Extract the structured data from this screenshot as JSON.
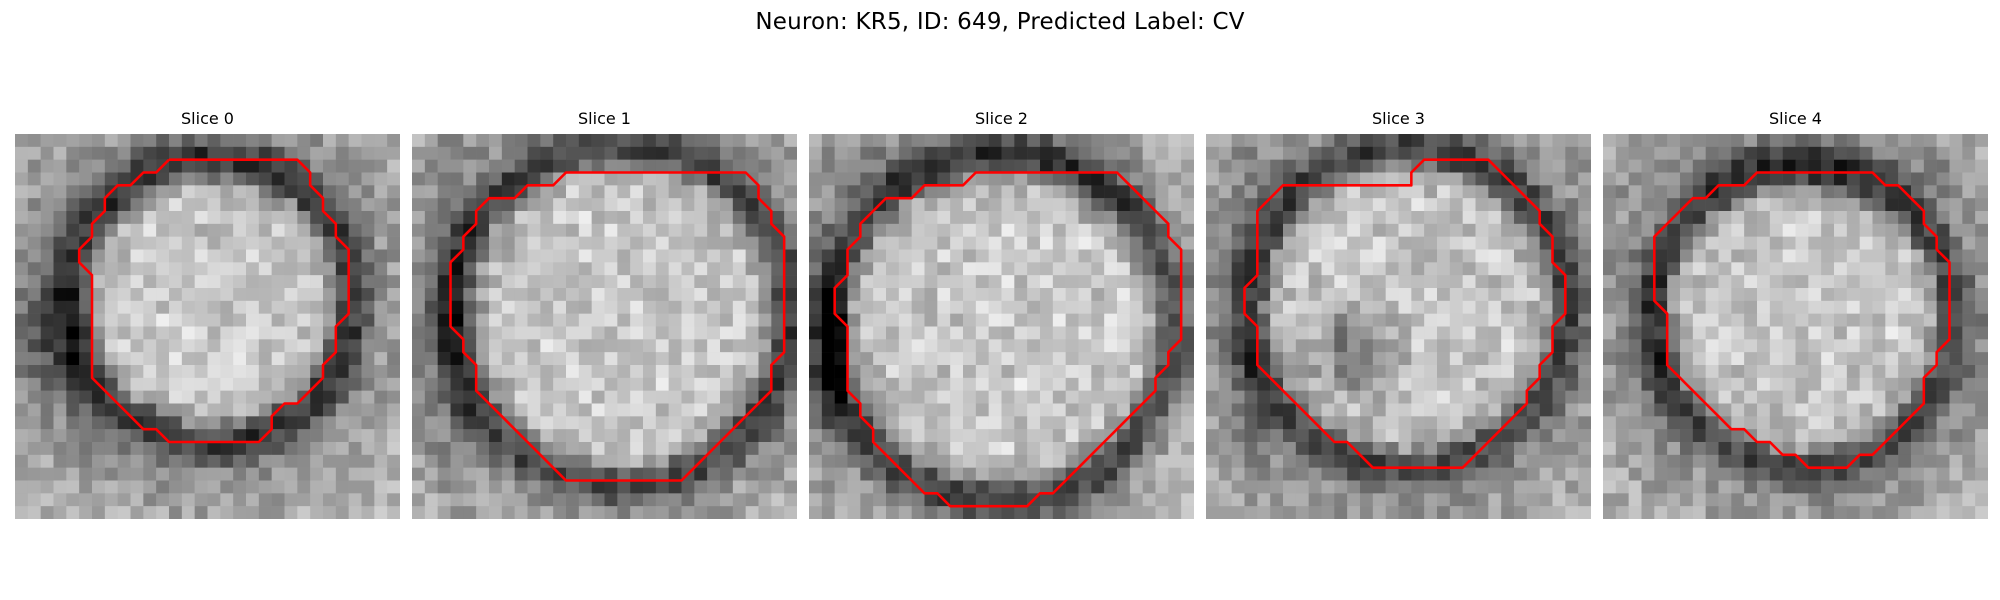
{
  "figure": {
    "title": "Neuron: KR5, ID: 649, Predicted Label: CV"
  },
  "slices": [
    {
      "title": "Slice 0",
      "contour": [
        [
          12,
          2
        ],
        [
          22,
          2
        ],
        [
          23,
          3
        ],
        [
          23,
          4
        ],
        [
          24,
          5
        ],
        [
          24,
          6
        ],
        [
          25,
          7
        ],
        [
          25,
          8
        ],
        [
          26,
          9
        ],
        [
          26,
          10
        ],
        [
          26,
          11
        ],
        [
          26,
          12
        ],
        [
          26,
          13
        ],
        [
          26,
          14
        ],
        [
          25,
          15
        ],
        [
          25,
          16
        ],
        [
          25,
          17
        ],
        [
          24,
          18
        ],
        [
          24,
          19
        ],
        [
          23,
          20
        ],
        [
          22,
          21
        ],
        [
          21,
          21
        ],
        [
          20,
          22
        ],
        [
          20,
          23
        ],
        [
          19,
          24
        ],
        [
          12,
          24
        ],
        [
          11,
          23
        ],
        [
          10,
          23
        ],
        [
          9,
          22
        ],
        [
          8,
          21
        ],
        [
          7,
          20
        ],
        [
          6,
          19
        ],
        [
          6,
          18
        ],
        [
          6,
          17
        ],
        [
          6,
          16
        ],
        [
          6,
          15
        ],
        [
          6,
          14
        ],
        [
          6,
          13
        ],
        [
          6,
          12
        ],
        [
          6,
          11
        ],
        [
          5,
          10
        ],
        [
          5,
          9
        ],
        [
          6,
          8
        ],
        [
          6,
          7
        ],
        [
          7,
          6
        ],
        [
          7,
          5
        ],
        [
          8,
          4
        ],
        [
          9,
          4
        ],
        [
          10,
          3
        ],
        [
          11,
          3
        ]
      ],
      "tone": [
        1,
        0.42,
        0.6,
        -0.1,
        0.15,
        0.9
      ]
    },
    {
      "title": "Slice 1",
      "contour": [
        [
          17,
          3
        ],
        [
          26,
          3
        ],
        [
          27,
          4
        ],
        [
          27,
          5
        ],
        [
          28,
          6
        ],
        [
          28,
          7
        ],
        [
          29,
          8
        ],
        [
          29,
          9
        ],
        [
          29,
          10
        ],
        [
          29,
          11
        ],
        [
          29,
          12
        ],
        [
          29,
          13
        ],
        [
          29,
          14
        ],
        [
          29,
          15
        ],
        [
          29,
          16
        ],
        [
          29,
          17
        ],
        [
          28,
          18
        ],
        [
          28,
          19
        ],
        [
          28,
          20
        ],
        [
          27,
          21
        ],
        [
          26,
          22
        ],
        [
          25,
          23
        ],
        [
          24,
          24
        ],
        [
          23,
          25
        ],
        [
          22,
          26
        ],
        [
          21,
          27
        ],
        [
          12,
          27
        ],
        [
          11,
          26
        ],
        [
          10,
          25
        ],
        [
          9,
          24
        ],
        [
          8,
          23
        ],
        [
          7,
          22
        ],
        [
          6,
          21
        ],
        [
          5,
          20
        ],
        [
          5,
          19
        ],
        [
          5,
          18
        ],
        [
          4,
          17
        ],
        [
          4,
          16
        ],
        [
          3,
          15
        ],
        [
          3,
          14
        ],
        [
          3,
          13
        ],
        [
          3,
          12
        ],
        [
          3,
          11
        ],
        [
          3,
          10
        ],
        [
          4,
          9
        ],
        [
          4,
          8
        ],
        [
          5,
          7
        ],
        [
          5,
          6
        ],
        [
          6,
          5
        ],
        [
          8,
          5
        ],
        [
          9,
          4
        ],
        [
          11,
          4
        ],
        [
          12,
          3
        ],
        [
          16,
          3
        ]
      ],
      "tone": [
        2,
        0.48,
        0.5,
        0.35,
        -0.2,
        0.65
      ]
    },
    {
      "title": "Slice 2",
      "contour": [
        [
          16,
          3
        ],
        [
          24,
          3
        ],
        [
          25,
          4
        ],
        [
          26,
          5
        ],
        [
          27,
          6
        ],
        [
          28,
          7
        ],
        [
          28,
          8
        ],
        [
          29,
          9
        ],
        [
          29,
          10
        ],
        [
          29,
          11
        ],
        [
          29,
          12
        ],
        [
          29,
          13
        ],
        [
          29,
          14
        ],
        [
          29,
          15
        ],
        [
          29,
          16
        ],
        [
          28,
          17
        ],
        [
          28,
          18
        ],
        [
          27,
          19
        ],
        [
          27,
          20
        ],
        [
          26,
          21
        ],
        [
          25,
          22
        ],
        [
          24,
          23
        ],
        [
          23,
          24
        ],
        [
          22,
          25
        ],
        [
          21,
          26
        ],
        [
          20,
          27
        ],
        [
          19,
          28
        ],
        [
          18,
          28
        ],
        [
          17,
          29
        ],
        [
          11,
          29
        ],
        [
          10,
          28
        ],
        [
          9,
          28
        ],
        [
          8,
          27
        ],
        [
          7,
          26
        ],
        [
          6,
          25
        ],
        [
          5,
          24
        ],
        [
          5,
          23
        ],
        [
          4,
          22
        ],
        [
          4,
          21
        ],
        [
          3,
          20
        ],
        [
          3,
          19
        ],
        [
          3,
          18
        ],
        [
          3,
          17
        ],
        [
          3,
          16
        ],
        [
          3,
          15
        ],
        [
          2,
          14
        ],
        [
          2,
          13
        ],
        [
          2,
          12
        ],
        [
          3,
          11
        ],
        [
          3,
          10
        ],
        [
          3,
          9
        ],
        [
          4,
          8
        ],
        [
          4,
          7
        ],
        [
          5,
          6
        ],
        [
          6,
          5
        ],
        [
          7,
          5
        ],
        [
          8,
          5
        ],
        [
          9,
          4
        ],
        [
          10,
          4
        ],
        [
          11,
          4
        ],
        [
          12,
          4
        ],
        [
          13,
          3
        ],
        [
          15,
          3
        ]
      ],
      "tone": [
        3,
        0.5,
        0.5,
        -0.4,
        0.35,
        0.75
      ]
    },
    {
      "title": "Slice 3",
      "contour": [
        [
          18,
          2
        ],
        [
          22,
          2
        ],
        [
          23,
          3
        ],
        [
          24,
          4
        ],
        [
          25,
          5
        ],
        [
          26,
          6
        ],
        [
          26,
          7
        ],
        [
          27,
          8
        ],
        [
          27,
          9
        ],
        [
          27,
          10
        ],
        [
          28,
          11
        ],
        [
          28,
          12
        ],
        [
          28,
          13
        ],
        [
          28,
          14
        ],
        [
          27,
          15
        ],
        [
          27,
          16
        ],
        [
          27,
          17
        ],
        [
          26,
          18
        ],
        [
          26,
          19
        ],
        [
          25,
          20
        ],
        [
          25,
          21
        ],
        [
          24,
          22
        ],
        [
          23,
          23
        ],
        [
          22,
          24
        ],
        [
          21,
          25
        ],
        [
          20,
          26
        ],
        [
          13,
          26
        ],
        [
          12,
          25
        ],
        [
          11,
          24
        ],
        [
          10,
          24
        ],
        [
          9,
          23
        ],
        [
          8,
          22
        ],
        [
          7,
          21
        ],
        [
          6,
          20
        ],
        [
          5,
          19
        ],
        [
          4,
          18
        ],
        [
          4,
          17
        ],
        [
          4,
          16
        ],
        [
          4,
          15
        ],
        [
          3,
          14
        ],
        [
          3,
          13
        ],
        [
          3,
          12
        ],
        [
          4,
          11
        ],
        [
          4,
          10
        ],
        [
          4,
          9
        ],
        [
          4,
          8
        ],
        [
          4,
          7
        ],
        [
          4,
          6
        ],
        [
          5,
          5
        ],
        [
          6,
          4
        ],
        [
          7,
          4
        ],
        [
          16,
          4
        ],
        [
          16,
          3
        ],
        [
          17,
          2
        ]
      ],
      "tone": [
        4,
        0.38,
        0.58,
        0.2,
        0.1,
        0.55
      ]
    },
    {
      "title": "Slice 4",
      "contour": [
        [
          13,
          3
        ],
        [
          21,
          3
        ],
        [
          22,
          4
        ],
        [
          23,
          4
        ],
        [
          24,
          5
        ],
        [
          25,
          6
        ],
        [
          25,
          7
        ],
        [
          26,
          8
        ],
        [
          26,
          9
        ],
        [
          27,
          10
        ],
        [
          27,
          11
        ],
        [
          27,
          12
        ],
        [
          27,
          13
        ],
        [
          27,
          14
        ],
        [
          27,
          15
        ],
        [
          27,
          16
        ],
        [
          26,
          17
        ],
        [
          26,
          18
        ],
        [
          25,
          19
        ],
        [
          25,
          20
        ],
        [
          25,
          21
        ],
        [
          24,
          22
        ],
        [
          23,
          23
        ],
        [
          22,
          24
        ],
        [
          21,
          25
        ],
        [
          20,
          25
        ],
        [
          19,
          26
        ],
        [
          16,
          26
        ],
        [
          15,
          25
        ],
        [
          14,
          25
        ],
        [
          13,
          24
        ],
        [
          12,
          24
        ],
        [
          11,
          23
        ],
        [
          10,
          23
        ],
        [
          9,
          22
        ],
        [
          8,
          21
        ],
        [
          7,
          20
        ],
        [
          6,
          19
        ],
        [
          5,
          18
        ],
        [
          5,
          17
        ],
        [
          5,
          16
        ],
        [
          5,
          15
        ],
        [
          5,
          14
        ],
        [
          4,
          13
        ],
        [
          4,
          12
        ],
        [
          4,
          11
        ],
        [
          4,
          10
        ],
        [
          4,
          9
        ],
        [
          4,
          8
        ],
        [
          5,
          7
        ],
        [
          6,
          6
        ],
        [
          7,
          5
        ],
        [
          8,
          5
        ],
        [
          9,
          4
        ],
        [
          10,
          4
        ],
        [
          11,
          4
        ],
        [
          12,
          3
        ]
      ],
      "tone": [
        5,
        0.5,
        0.5,
        0.05,
        -0.05,
        0.6
      ]
    }
  ],
  "style": {
    "contour_color": "#ff0000",
    "colormap": "gray"
  }
}
